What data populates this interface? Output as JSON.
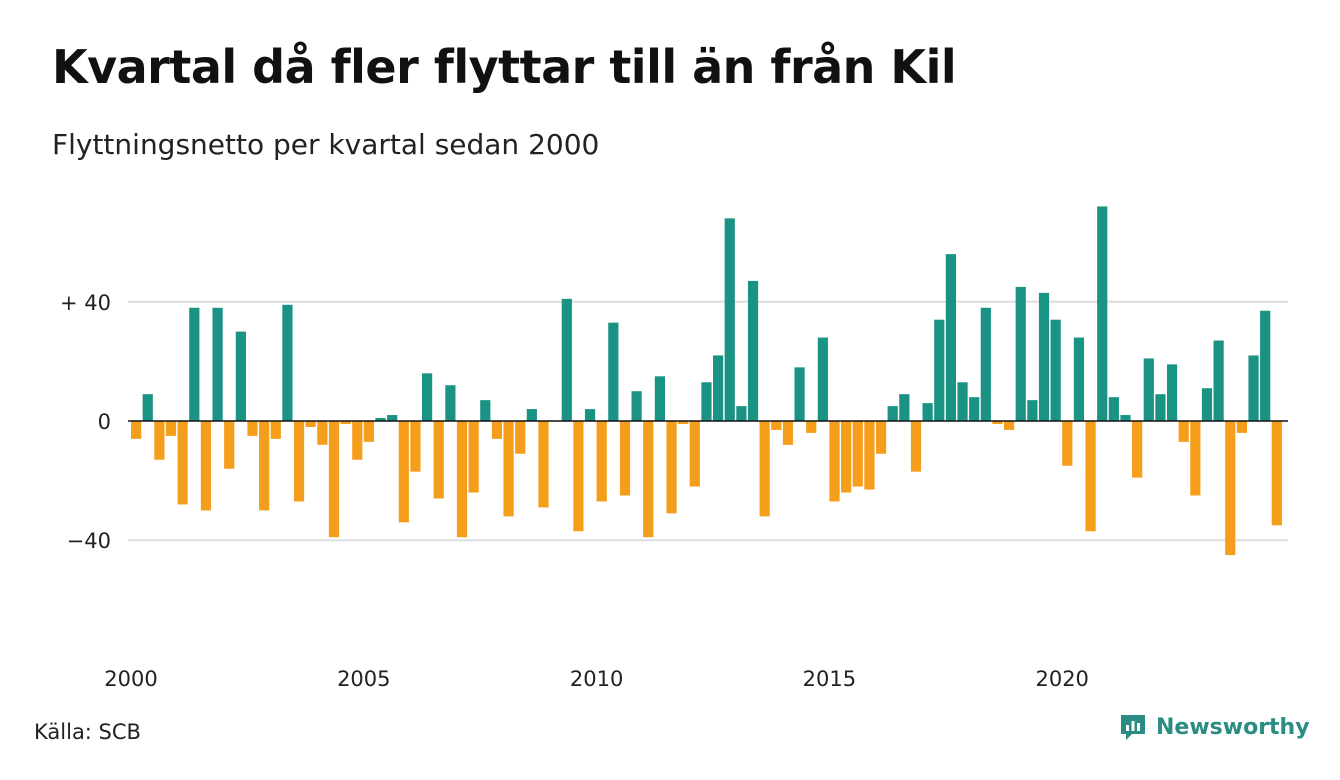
{
  "title": "Kvartal då fler flyttar till än från Kil",
  "subtitle": "Flyttningsnetto per kvartal sedan 2000",
  "source": "Källa: SCB",
  "brand": {
    "name": "Newsworthy",
    "icon": "newsworthy-logo-icon"
  },
  "colors": {
    "positive": "#1a9384",
    "negative": "#f59e1b",
    "grid": "#dddddd",
    "brand": "#2a8c82"
  },
  "chart_data": {
    "type": "bar",
    "x_start": "2000 Q1",
    "period": "quarter",
    "values": [
      -6,
      9,
      -13,
      -5,
      -28,
      38,
      -30,
      38,
      -16,
      30,
      -5,
      -30,
      -6,
      39,
      -27,
      -2,
      -8,
      -39,
      -1,
      -13,
      -7,
      1,
      2,
      -34,
      -17,
      16,
      -26,
      12,
      -39,
      -24,
      7,
      -6,
      -32,
      -11,
      4,
      -29,
      0,
      41,
      -37,
      4,
      -27,
      33,
      -25,
      10,
      -39,
      15,
      -31,
      -1,
      -22,
      13,
      22,
      68,
      5,
      47,
      -32,
      -3,
      -8,
      18,
      -4,
      28,
      -27,
      -24,
      -22,
      -23,
      -11,
      5,
      9,
      -17,
      6,
      34,
      56,
      13,
      8,
      38,
      -1,
      -3,
      45,
      7,
      43,
      34,
      -15,
      28,
      -37,
      72,
      8,
      2,
      -19,
      21,
      9,
      19,
      -7,
      -25,
      11,
      27,
      -45,
      -4,
      22,
      37,
      -35
    ],
    "ylim": [
      -55,
      75
    ],
    "y_ticks": [
      40,
      0,
      -40
    ],
    "y_tick_labels": [
      "+ 40",
      "0",
      "−40"
    ],
    "x_ticks": [
      "2000",
      "2005",
      "2010",
      "2015",
      "2020"
    ],
    "positive_color": "#1a9384",
    "negative_color": "#f59e1b",
    "grid": true,
    "legend": "none"
  }
}
